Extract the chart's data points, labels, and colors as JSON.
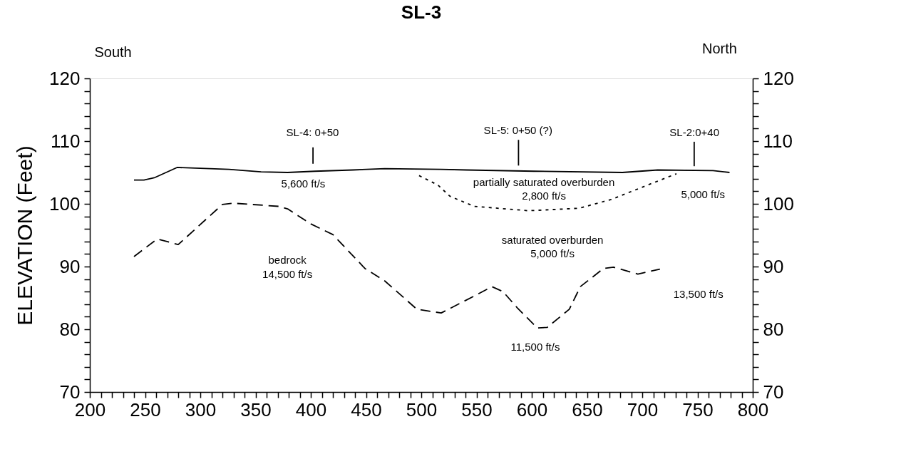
{
  "chart_data": {
    "type": "line",
    "title": "SL-3",
    "ylabel": "ELEVATION (Feet)",
    "x": [
      240,
      249,
      259,
      279,
      326,
      355,
      379,
      404,
      438,
      467,
      518,
      541,
      602,
      682,
      714,
      764,
      779
    ],
    "series": [
      {
        "color": "#000000",
        "line_style": "solid",
        "values": [
          103.8,
          103.8,
          104.2,
          105.8,
          105.5,
          105.1,
          105.0,
          105.2,
          105.4,
          105.6,
          105.5,
          105.4,
          105.2,
          105.0,
          105.4,
          105.3,
          105.0
        ]
      },
      {
        "color": "#000000",
        "line_style": "dotted",
        "x": [
          498,
          515,
          526,
          548,
          597,
          643,
          672,
          705,
          731
        ],
        "values": [
          104.5,
          103.0,
          101.2,
          99.6,
          98.9,
          99.3,
          100.7,
          103.0,
          104.8
        ]
      },
      {
        "color": "#000000",
        "line_style": "dashed",
        "x": [
          240,
          261,
          280,
          320,
          330,
          371,
          379,
          400,
          420,
          449,
          467,
          496,
          518,
          548,
          564,
          574,
          587,
          605,
          614,
          634,
          644,
          665,
          674,
          696,
          716
        ],
        "values": [
          91.6,
          94.4,
          93.5,
          99.9,
          100.1,
          99.6,
          99.2,
          96.8,
          95.1,
          89.7,
          87.7,
          83.2,
          82.6,
          85.3,
          86.8,
          86.0,
          83.4,
          80.2,
          80.3,
          83.2,
          86.8,
          89.7,
          89.9,
          88.8,
          89.6
        ]
      },
      {
        "color": "#000000",
        "line_style": "solid",
        "x": [
          402,
          402
        ],
        "values": [
          106.4,
          109.0
        ]
      },
      {
        "color": "#000000",
        "line_style": "solid",
        "x": [
          588,
          588
        ],
        "values": [
          106.1,
          110.2
        ]
      },
      {
        "color": "#000000",
        "line_style": "solid",
        "x": [
          747,
          747
        ],
        "values": [
          106.0,
          109.9
        ]
      }
    ],
    "annotations": [
      "South",
      "North",
      "SL-4: 0+50",
      "SL-5: 0+50 (?)",
      "SL-2:0+40",
      "5,600 ft/s",
      "partially saturated overburden",
      "2,800 ft/s",
      "5,000 ft/s",
      "saturated overburden",
      "5,000 ft/s",
      "bedrock",
      "14,500 ft/s",
      "13,500 ft/s",
      "11,500 ft/s"
    ],
    "xlim": [
      200,
      800
    ],
    "xticks": [
      200,
      {
        "value": 210,
        "label": null
      },
      {
        "value": 220,
        "label": null
      },
      {
        "value": 230,
        "label": null
      },
      {
        "value": 240,
        "label": null
      },
      250,
      {
        "value": 260,
        "label": null
      },
      {
        "value": 270,
        "label": null
      },
      {
        "value": 280,
        "label": null
      },
      {
        "value": 290,
        "label": null
      },
      300,
      {
        "value": 310,
        "label": null
      },
      {
        "value": 320,
        "label": null
      },
      {
        "value": 330,
        "label": null
      },
      {
        "value": 340,
        "label": null
      },
      350,
      {
        "value": 360,
        "label": null
      },
      {
        "value": 370,
        "label": null
      },
      {
        "value": 380,
        "label": null
      },
      {
        "value": 390,
        "label": null
      },
      400,
      {
        "value": 410,
        "label": null
      },
      {
        "value": 420,
        "label": null
      },
      {
        "value": 430,
        "label": null
      },
      {
        "value": 440,
        "label": null
      },
      450,
      {
        "value": 460,
        "label": null
      },
      {
        "value": 470,
        "label": null
      },
      {
        "value": 480,
        "label": null
      },
      {
        "value": 490,
        "label": null
      },
      500,
      {
        "value": 510,
        "label": null
      },
      {
        "value": 520,
        "label": null
      },
      {
        "value": 530,
        "label": null
      },
      {
        "value": 540,
        "label": null
      },
      550,
      {
        "value": 560,
        "label": null
      },
      {
        "value": 570,
        "label": null
      },
      {
        "value": 580,
        "label": null
      },
      {
        "value": 590,
        "label": null
      },
      600,
      {
        "value": 610,
        "label": null
      },
      {
        "value": 620,
        "label": null
      },
      {
        "value": 630,
        "label": null
      },
      {
        "value": 640,
        "label": null
      },
      650,
      {
        "value": 660,
        "label": null
      },
      {
        "value": 670,
        "label": null
      },
      {
        "value": 680,
        "label": null
      },
      {
        "value": 690,
        "label": null
      },
      700,
      {
        "value": 710,
        "label": null
      },
      {
        "value": 720,
        "label": null
      },
      {
        "value": 730,
        "label": null
      },
      {
        "value": 740,
        "label": null
      },
      750,
      {
        "value": 760,
        "label": null
      },
      {
        "value": 770,
        "label": null
      },
      {
        "value": 780,
        "label": null
      },
      {
        "value": 790,
        "label": null
      },
      800
    ],
    "ylim": [
      70,
      120
    ],
    "yticks": [
      70,
      {
        "value": 72,
        "label": null
      },
      {
        "value": 74,
        "label": null
      },
      {
        "value": 76,
        "label": null
      },
      {
        "value": 78,
        "label": null
      },
      80,
      {
        "value": 82,
        "label": null
      },
      {
        "value": 84,
        "label": null
      },
      {
        "value": 86,
        "label": null
      },
      {
        "value": 88,
        "label": null
      },
      90,
      {
        "value": 92,
        "label": null
      },
      {
        "value": 94,
        "label": null
      },
      {
        "value": 96,
        "label": null
      },
      {
        "value": 98,
        "label": null
      },
      100,
      {
        "value": 102,
        "label": null
      },
      {
        "value": 104,
        "label": null
      },
      {
        "value": 106,
        "label": null
      },
      {
        "value": 108,
        "label": null
      },
      110,
      {
        "value": 112,
        "label": null
      },
      {
        "value": 114,
        "label": null
      },
      {
        "value": 116,
        "label": null
      },
      {
        "value": 118,
        "label": null
      },
      120
    ],
    "y2lim": [
      70,
      120
    ],
    "y2ticks": [
      70,
      {
        "value": 72,
        "label": null
      },
      {
        "value": 74,
        "label": null
      },
      {
        "value": 76,
        "label": null
      },
      {
        "value": 78,
        "label": null
      },
      80,
      {
        "value": 82,
        "label": null
      },
      {
        "value": 84,
        "label": null
      },
      {
        "value": 86,
        "label": null
      },
      {
        "value": 88,
        "label": null
      },
      90,
      {
        "value": 92,
        "label": null
      },
      {
        "value": 94,
        "label": null
      },
      {
        "value": 96,
        "label": null
      },
      {
        "value": 98,
        "label": null
      },
      100,
      {
        "value": 102,
        "label": null
      },
      {
        "value": 104,
        "label": null
      },
      {
        "value": 106,
        "label": null
      },
      {
        "value": 108,
        "label": null
      },
      110,
      {
        "value": 112,
        "label": null
      },
      {
        "value": 114,
        "label": null
      },
      {
        "value": 116,
        "label": null
      },
      {
        "value": 118,
        "label": null
      },
      120
    ],
    "grid": false,
    "marker": "none"
  }
}
